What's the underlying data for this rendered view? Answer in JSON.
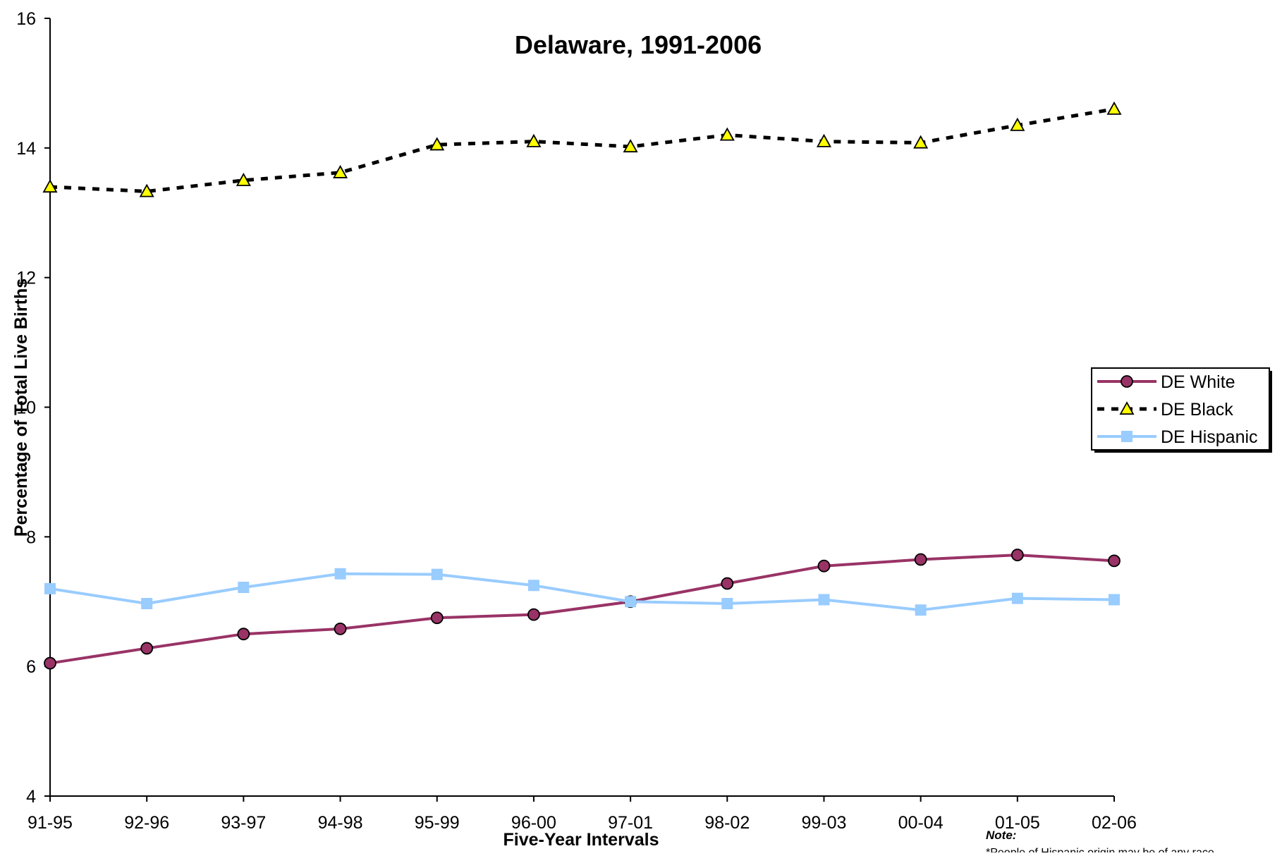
{
  "chart_data": {
    "type": "line",
    "title": "Delaware, 1991-2006",
    "xlabel": "Five-Year Intervals",
    "ylabel": "Percentage of Total Live Births",
    "ylim": [
      4,
      16
    ],
    "yticks": [
      4,
      6,
      8,
      10,
      12,
      14,
      16
    ],
    "grid": false,
    "legend_position": "right",
    "categories": [
      "91-95",
      "92-96",
      "93-97",
      "94-98",
      "95-99",
      "96-00",
      "97-01",
      "98-02",
      "99-03",
      "00-04",
      "01-05",
      "02-06"
    ],
    "series": [
      {
        "name": "DE White",
        "color": "#993366",
        "marker": "circle",
        "marker_fill": "#993366",
        "line_style": "solid",
        "values": [
          6.05,
          6.28,
          6.5,
          6.58,
          6.75,
          6.8,
          7.0,
          7.28,
          7.55,
          7.65,
          7.72,
          7.63
        ]
      },
      {
        "name": "DE Black",
        "color": "#000000",
        "marker": "triangle",
        "marker_fill": "#ffff00",
        "line_style": "dotted",
        "values": [
          13.4,
          13.33,
          13.5,
          13.62,
          14.05,
          14.1,
          14.02,
          14.2,
          14.1,
          14.08,
          14.35,
          14.6
        ]
      },
      {
        "name": "DE Hispanic",
        "color": "#99ccff",
        "marker": "square",
        "marker_fill": "#99ccff",
        "line_style": "solid",
        "values": [
          7.2,
          6.97,
          7.22,
          7.43,
          7.42,
          7.25,
          7.0,
          6.97,
          7.03,
          6.87,
          7.05,
          7.03
        ]
      }
    ]
  },
  "note": {
    "title": "Note:",
    "text": "*People of Hispanic origin may be of any race."
  }
}
